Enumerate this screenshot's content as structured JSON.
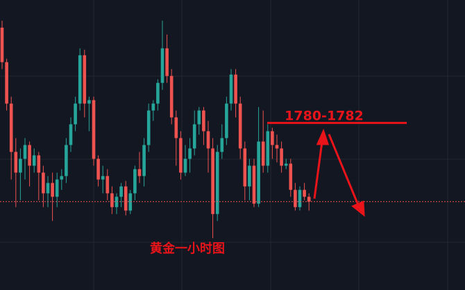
{
  "chart_data": {
    "type": "candlestick",
    "title": "黄金一小时图",
    "annotation": "1780-1782",
    "up_color": "#26a69a",
    "down_color": "#ef5350",
    "annotation_color": "#e8141a",
    "ylim": [
      1769,
      1790
    ],
    "resistance_line": 1781.1,
    "last_price": 1775.4,
    "open": [
      1788,
      1785.5,
      1782.5,
      1779,
      1777.5,
      1778.5,
      1779.5,
      1778,
      1778.75,
      1777.5,
      1776,
      1776.75,
      1775.75,
      1777,
      1777.25,
      1779.5,
      1781,
      1782.5,
      1786,
      1782.5,
      1782.75,
      1778.5,
      1777,
      1777.25,
      1776,
      1775,
      1775.75,
      1776.5,
      1774.75,
      1776,
      1777.75,
      1777.25,
      1779.5,
      1782,
      1782.5,
      1784,
      1786.5,
      1784.5,
      1781.5,
      1780,
      1777.5,
      1778.5,
      1779.25,
      1781,
      1782,
      1780.5,
      1779.25,
      1774.5,
      1779,
      1780,
      1782.5,
      1784.6,
      1782.5,
      1779.25,
      1776.5,
      1778,
      1775.25,
      1779.75,
      1778,
      1780.5,
      1779.5,
      1779.25,
      1778,
      1778.15,
      1776.25,
      1775,
      1776.25,
      1775.75
    ],
    "high": [
      1788.5,
      1785.75,
      1783,
      1780,
      1779.25,
      1780,
      1779.75,
      1779.25,
      1779,
      1778,
      1777.25,
      1777.5,
      1777.5,
      1777.75,
      1780,
      1781.5,
      1783,
      1786.5,
      1786.4,
      1783,
      1783,
      1778.75,
      1778,
      1777.75,
      1776.5,
      1776,
      1776.75,
      1776.9,
      1776.25,
      1778,
      1779,
      1780,
      1782.5,
      1782.75,
      1784.25,
      1788.5,
      1787.5,
      1785,
      1782,
      1780.5,
      1779.5,
      1780,
      1782,
      1782.25,
      1782.25,
      1781.25,
      1780,
      1779.5,
      1781,
      1783,
      1785,
      1785,
      1783,
      1779.75,
      1778.5,
      1778.5,
      1782.25,
      1782,
      1781,
      1780.75,
      1780.25,
      1779.75,
      1778.5,
      1778.5,
      1776.75,
      1776.5,
      1776.75,
      1776
    ],
    "low": [
      1785,
      1782,
      1777,
      1775,
      1775.5,
      1777,
      1776.5,
      1777.5,
      1775.5,
      1775,
      1775,
      1774,
      1775,
      1776.25,
      1776.75,
      1779,
      1780.5,
      1782,
      1781.5,
      1780.5,
      1778,
      1776.5,
      1776,
      1775.5,
      1774.5,
      1774.5,
      1775,
      1774.4,
      1774.5,
      1775.5,
      1776.75,
      1776.5,
      1779,
      1781.25,
      1782,
      1783.5,
      1784,
      1781,
      1778,
      1777,
      1777.25,
      1777.5,
      1778.75,
      1780.25,
      1779.5,
      1777.5,
      1772.75,
      1774,
      1778.5,
      1779.5,
      1782,
      1781.5,
      1778.5,
      1775.5,
      1775.5,
      1775,
      1775,
      1777.5,
      1777.5,
      1778.5,
      1778.25,
      1777.5,
      1777.75,
      1775.75,
      1774.75,
      1774.75,
      1775.5,
      1774.75
    ],
    "close": [
      1785.5,
      1782.5,
      1779,
      1777.5,
      1778.5,
      1779.5,
      1778,
      1778.75,
      1777.5,
      1776,
      1776.75,
      1775.75,
      1777,
      1777.25,
      1779.5,
      1781,
      1782.5,
      1786,
      1782.5,
      1782.75,
      1778.5,
      1777,
      1777.25,
      1776,
      1775,
      1775.75,
      1776.5,
      1774.75,
      1776,
      1777.75,
      1777.25,
      1779.5,
      1782,
      1782.5,
      1784,
      1786.5,
      1784.5,
      1781.5,
      1780,
      1777.5,
      1778.5,
      1779.25,
      1781,
      1782,
      1780.5,
      1779.25,
      1774.5,
      1779,
      1780,
      1782.5,
      1784.6,
      1782.5,
      1779.25,
      1776.5,
      1778,
      1775.25,
      1779.75,
      1778,
      1780.5,
      1779.5,
      1779.25,
      1778,
      1778.15,
      1776.25,
      1775,
      1776.25,
      1775.75,
      1775.4
    ]
  }
}
